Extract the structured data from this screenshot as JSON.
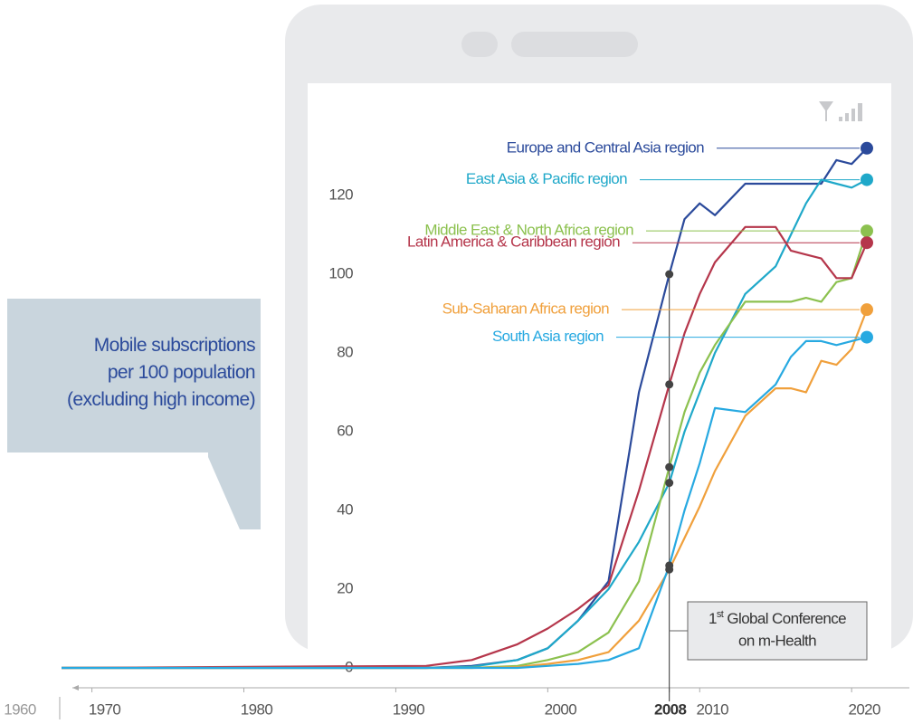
{
  "chart_data": {
    "type": "line",
    "title": "Mobile subscriptions per 100 population (excluding high income)",
    "x_start_label": "1960",
    "x": [
      1968,
      1992,
      1995,
      1998,
      2000,
      2002,
      2004,
      2006,
      2008,
      2009,
      2010,
      2011,
      2013,
      2015,
      2016,
      2017,
      2018,
      2019,
      2020,
      2021
    ],
    "xlim": [
      1968,
      2023.8
    ],
    "xticks": [
      1970,
      1980,
      1990,
      2000,
      2008,
      2010,
      2020
    ],
    "highlight_x": 2008,
    "ylim": [
      -4,
      140
    ],
    "yticks": [
      0,
      20,
      40,
      60,
      80,
      100,
      120
    ],
    "annotation": {
      "ordinal": "1",
      "ordinal_suffix": "st",
      "lines": [
        "Global Conference",
        "on m-Health"
      ]
    },
    "series": [
      {
        "name": "Europe and Central Asia region",
        "color": "#2b4a9b",
        "values": [
          0,
          0,
          0.5,
          2,
          5,
          12,
          22,
          70,
          100,
          114,
          118,
          115,
          123,
          123,
          123,
          123,
          123,
          129,
          128,
          132
        ]
      },
      {
        "name": "East Asia & Pacific region",
        "color": "#1fa8c9",
        "values": [
          0,
          0,
          0.3,
          2,
          5,
          12,
          20,
          32,
          47,
          60,
          70,
          80,
          95,
          102,
          110,
          118,
          124,
          123,
          122,
          124
        ]
      },
      {
        "name": "Middle East & North Africa region",
        "color": "#8cc14f",
        "values": [
          0,
          0,
          0,
          0.5,
          2,
          4,
          9,
          22,
          51,
          65,
          75,
          82,
          93,
          93,
          93,
          94,
          93,
          98,
          99,
          111
        ]
      },
      {
        "name": "Latin America & Caribbean region",
        "color": "#b5364b",
        "values": [
          0,
          0.5,
          2,
          6,
          10,
          15,
          21,
          45,
          72,
          85,
          95,
          103,
          112,
          112,
          106,
          105,
          104,
          99,
          99,
          108
        ]
      },
      {
        "name": "Sub-Saharan Africa region",
        "color": "#f0a03c",
        "values": [
          0,
          0,
          0,
          0.2,
          1,
          2,
          4,
          12,
          25,
          33,
          41,
          50,
          64,
          71,
          71,
          70,
          78,
          77,
          81,
          91
        ]
      },
      {
        "name": "South Asia region",
        "color": "#27a9e1",
        "values": [
          0,
          0,
          0,
          0,
          0.5,
          1,
          2,
          5,
          26,
          40,
          52,
          66,
          65,
          72,
          79,
          83,
          83,
          82,
          83,
          84
        ]
      }
    ]
  }
}
